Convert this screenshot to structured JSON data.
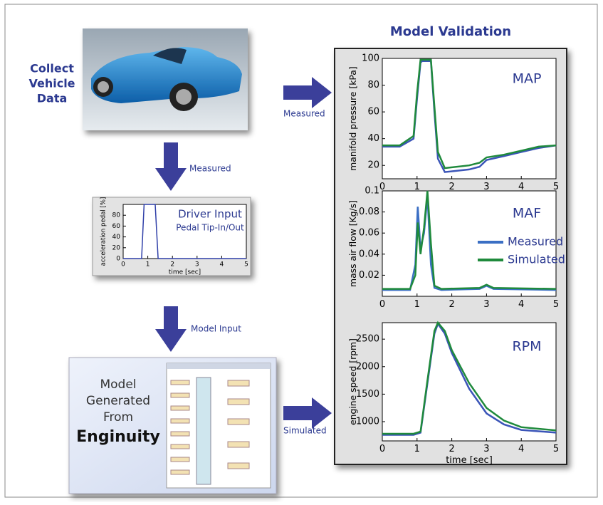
{
  "diagram": {
    "collect": [
      "Collect",
      "Vehicle",
      "Data"
    ],
    "validation_title": "Model Validation",
    "arrow_labels": [
      "Measured",
      "Measured",
      "Model Input",
      "Simulated"
    ],
    "model_text": [
      "Model",
      "Generated",
      "From"
    ],
    "model_brand": "Enginuity"
  },
  "chart_data": [
    {
      "type": "line",
      "annotations": [
        "Driver Input",
        "Pedal Tip-In/Out"
      ],
      "y_label": "acceleration pedal [%]",
      "x_label": "time [sec]",
      "x": [
        0,
        0.75,
        0.85,
        1.3,
        1.42,
        5
      ],
      "series": [
        {
          "color": "#2f3fa8",
          "values": [
            0,
            0,
            100,
            100,
            0,
            0
          ]
        }
      ],
      "xlim": [
        0,
        5
      ],
      "ylim": [
        0,
        100
      ],
      "xticks": [
        0,
        1,
        2,
        3,
        4,
        5
      ],
      "yticks": [
        0,
        20,
        40,
        60,
        80
      ]
    },
    {
      "type": "line",
      "annotations": [
        "MAP"
      ],
      "y_label": "manifold pressure [kPa]",
      "x": [
        0,
        0.5,
        0.9,
        1.0,
        1.1,
        1.15,
        1.4,
        1.5,
        1.6,
        1.8,
        2.5,
        2.8,
        3.0,
        3.5,
        4,
        4.5,
        5
      ],
      "series": [
        {
          "color": "#3b55b8",
          "values": [
            34,
            34,
            40,
            70,
            97,
            98,
            98,
            60,
            25,
            15,
            17,
            19,
            24,
            27,
            30,
            33,
            35
          ]
        },
        {
          "color": "#1f8a3c",
          "values": [
            35,
            35,
            42,
            74,
            99,
            99,
            99,
            64,
            30,
            18,
            20,
            22,
            26,
            28,
            31,
            34,
            35
          ]
        }
      ],
      "xlim": [
        0,
        5
      ],
      "ylim": [
        10,
        100
      ],
      "xticks": [
        0,
        1,
        2,
        3,
        4,
        5
      ],
      "yticks": [
        20,
        40,
        60,
        80,
        100
      ]
    },
    {
      "type": "line",
      "annotations": [
        "MAF"
      ],
      "y_label": "mass air flow [Kg/s]",
      "x": [
        0,
        0.8,
        0.95,
        1.02,
        1.1,
        1.2,
        1.3,
        1.4,
        1.5,
        1.7,
        2.8,
        3.0,
        3.2,
        5
      ],
      "series": [
        {
          "name": "Measured",
          "color": "#3b6fc4",
          "values": [
            0.006,
            0.006,
            0.03,
            0.085,
            0.045,
            0.06,
            0.095,
            0.03,
            0.008,
            0.006,
            0.007,
            0.01,
            0.007,
            0.006
          ]
        },
        {
          "name": "Simulated",
          "color": "#1f8a3c",
          "values": [
            0.007,
            0.007,
            0.02,
            0.07,
            0.04,
            0.065,
            0.1,
            0.05,
            0.01,
            0.007,
            0.008,
            0.011,
            0.008,
            0.007
          ]
        }
      ],
      "legend": "right",
      "xlim": [
        0,
        5
      ],
      "ylim": [
        0,
        0.1
      ],
      "xticks": [
        0,
        1,
        2,
        3,
        4,
        5
      ],
      "yticks": [
        0.02,
        0.04,
        0.06,
        0.08,
        0.1
      ]
    },
    {
      "type": "line",
      "annotations": [
        "RPM"
      ],
      "y_label": "engine speed [rpm]",
      "x_label": "time [sec]",
      "x": [
        0,
        0.9,
        1.1,
        1.3,
        1.5,
        1.6,
        1.8,
        2,
        2.5,
        3,
        3.5,
        4,
        5
      ],
      "series": [
        {
          "color": "#3b55b8",
          "values": [
            760,
            760,
            800,
            1700,
            2600,
            2780,
            2600,
            2250,
            1600,
            1150,
            950,
            850,
            800
          ]
        },
        {
          "color": "#1f8a3c",
          "values": [
            780,
            780,
            820,
            1750,
            2650,
            2800,
            2650,
            2300,
            1700,
            1250,
            1020,
            900,
            840
          ]
        }
      ],
      "xlim": [
        0,
        5
      ],
      "ylim": [
        650,
        2800
      ],
      "xticks": [
        0,
        1,
        2,
        3,
        4,
        5
      ],
      "yticks": [
        1000,
        1500,
        2000,
        2500
      ]
    }
  ]
}
